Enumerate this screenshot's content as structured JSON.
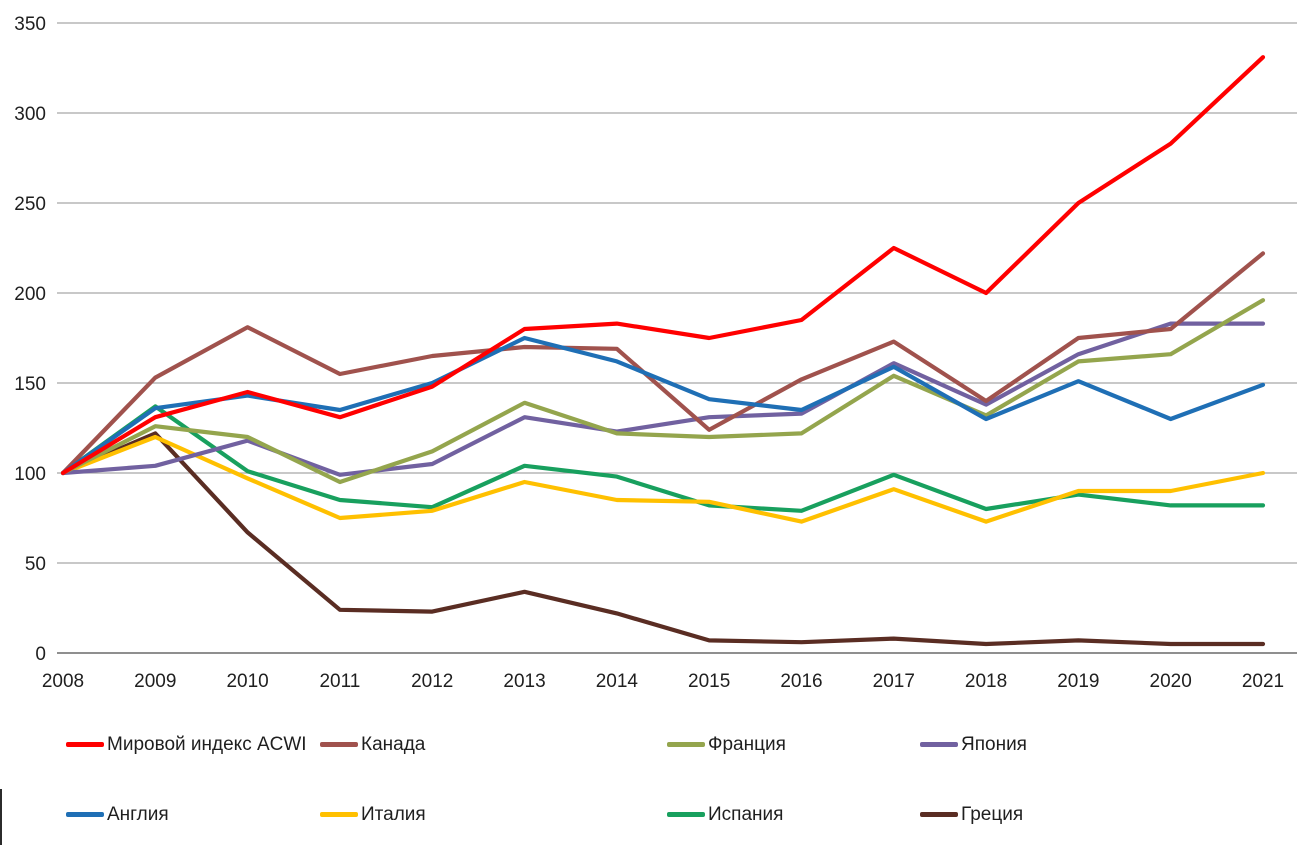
{
  "chart_data": {
    "type": "line",
    "title": "",
    "xlabel": "",
    "ylabel": "",
    "x": [
      2008,
      2009,
      2010,
      2011,
      2012,
      2013,
      2014,
      2015,
      2016,
      2017,
      2018,
      2019,
      2020,
      2021
    ],
    "x_labels": [
      "2008",
      "2009",
      "2010",
      "2011",
      "2012",
      "2013",
      "2014",
      "2015",
      "2016",
      "2017",
      "2018",
      "2019",
      "2020",
      "2021"
    ],
    "ylim": [
      0,
      350
    ],
    "yticks": [
      0,
      50,
      100,
      150,
      200,
      250,
      300,
      350
    ],
    "grid": true,
    "legend_position": "bottom",
    "axis_color": "#7f7f7f",
    "gridline_color": "#a6a6a6",
    "series": [
      {
        "key": "acwi",
        "name": "Мировой индекс ACWI",
        "color": "#ff0000",
        "values": [
          100,
          131,
          145,
          131,
          148,
          180,
          183,
          175,
          185,
          225,
          200,
          250,
          283,
          331
        ]
      },
      {
        "key": "canada",
        "name": "Канада",
        "color": "#a0524d",
        "values": [
          100,
          153,
          181,
          155,
          165,
          170,
          169,
          124,
          152,
          173,
          140,
          175,
          180,
          222
        ]
      },
      {
        "key": "france",
        "name": "Франция",
        "color": "#94a54d",
        "values": [
          100,
          126,
          120,
          95,
          112,
          139,
          122,
          120,
          122,
          154,
          132,
          162,
          166,
          196
        ]
      },
      {
        "key": "japan",
        "name": "Япония",
        "color": "#7161a0",
        "values": [
          100,
          104,
          118,
          99,
          105,
          131,
          123,
          131,
          133,
          161,
          138,
          166,
          183,
          183
        ]
      },
      {
        "key": "england",
        "name": "Англия",
        "color": "#1f6fb5",
        "values": [
          100,
          136,
          143,
          135,
          150,
          175,
          162,
          141,
          135,
          159,
          130,
          151,
          130,
          149
        ]
      },
      {
        "key": "italy",
        "name": "Италия",
        "color": "#ffc000",
        "values": [
          100,
          120,
          97,
          75,
          79,
          95,
          85,
          84,
          73,
          91,
          73,
          90,
          90,
          100
        ]
      },
      {
        "key": "spain",
        "name": "Испания",
        "color": "#18a05e",
        "values": [
          100,
          137,
          101,
          85,
          81,
          104,
          98,
          82,
          79,
          99,
          80,
          88,
          82,
          82
        ]
      },
      {
        "key": "greece",
        "name": "Греция",
        "color": "#5a2d23",
        "values": [
          100,
          122,
          67,
          24,
          23,
          34,
          22,
          7,
          6,
          8,
          5,
          7,
          5,
          5
        ]
      }
    ],
    "legend_rows": [
      [
        0,
        1,
        2,
        3
      ],
      [
        4,
        5,
        6,
        7
      ]
    ]
  }
}
